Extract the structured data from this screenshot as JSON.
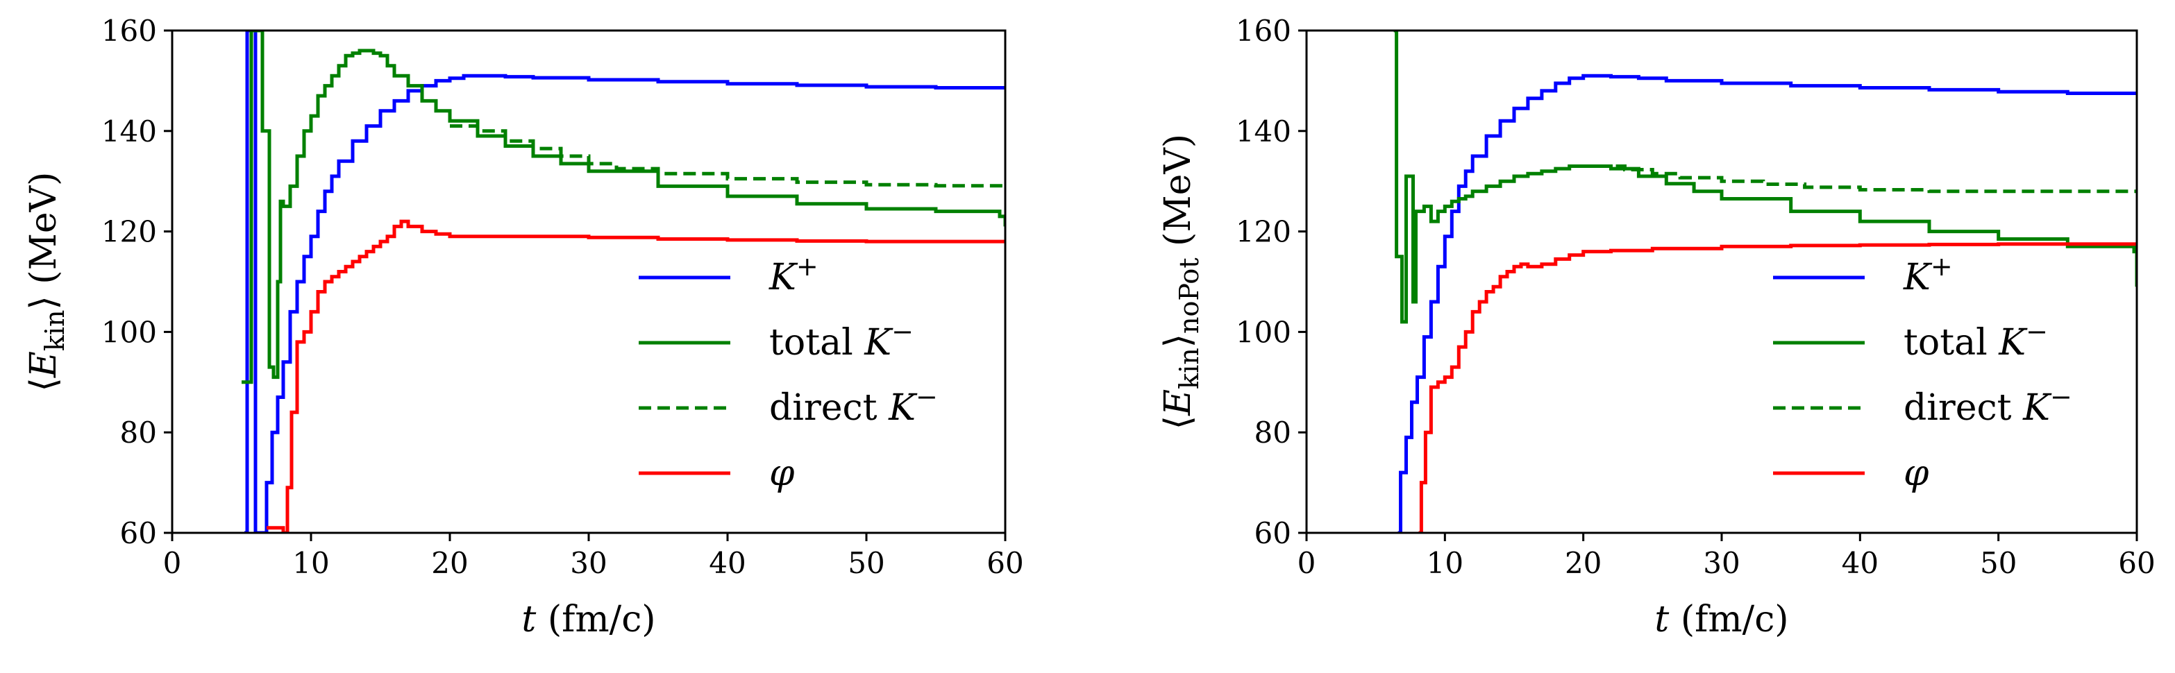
{
  "chart_data": [
    {
      "type": "line",
      "id": "left",
      "xlabel": "t (fm/c)",
      "ylabel": "⟨E_kin⟩ (MeV)",
      "ylabel_main": "⟨E",
      "ylabel_sub": "kin",
      "ylabel_tail": "⟩ (MeV)",
      "xlabel_var": "t",
      "xlabel_unit": " (fm/c)",
      "xlim": [
        0,
        60
      ],
      "ylim": [
        60,
        160
      ],
      "xticks": [
        0,
        10,
        20,
        30,
        40,
        50,
        60
      ],
      "yticks": [
        60,
        80,
        100,
        120,
        140,
        160
      ],
      "xtick_labels": [
        "0",
        "10",
        "20",
        "30",
        "40",
        "50",
        "60"
      ],
      "ytick_labels": [
        "60",
        "80",
        "100",
        "120",
        "140",
        "160"
      ],
      "legend_position": "lower-right",
      "series": [
        {
          "name": "K+",
          "label_base": "K",
          "label_sup": "+",
          "color": "#0000ff",
          "dash": "solid",
          "x": [
            5.2,
            5.4,
            5.8,
            6.0,
            6.4,
            6.8,
            7.2,
            7.6,
            8.0,
            8.5,
            9.0,
            9.5,
            10.0,
            10.5,
            11.0,
            11.5,
            12.0,
            13.0,
            14.0,
            15.0,
            16.0,
            17.0,
            18.0,
            19.0,
            20.0,
            21.0,
            22.0,
            24.0,
            26.0,
            30.0,
            35.0,
            40.0,
            45.0,
            50.0,
            55.0,
            60.0
          ],
          "y": [
            60,
            160,
            160,
            60,
            60,
            70,
            80,
            87,
            94,
            104,
            110,
            115,
            119,
            124,
            128,
            131,
            134,
            138,
            141,
            144,
            146,
            148,
            149,
            150,
            150.5,
            151,
            151,
            150.8,
            150.6,
            150.2,
            149.8,
            149.4,
            149.1,
            148.8,
            148.6,
            148.4
          ]
        },
        {
          "name": "total K−",
          "label_base": "total K",
          "label_sup": "−",
          "color": "#008000",
          "dash": "solid",
          "x": [
            5.0,
            5.6,
            5.7,
            6.0,
            6.4,
            6.5,
            7.0,
            7.3,
            7.6,
            7.8,
            8.0,
            8.5,
            9.0,
            9.5,
            10.0,
            10.5,
            11.0,
            11.5,
            12.0,
            12.5,
            13.0,
            13.5,
            14.0,
            14.5,
            15.0,
            15.5,
            16.0,
            17.0,
            18.0,
            19.0,
            20.0,
            22.0,
            24.0,
            26.0,
            28.0,
            30.0,
            35.0,
            40.0,
            45.0,
            50.0,
            55.0,
            59.6,
            60.0
          ],
          "y": [
            90,
            90,
            160,
            160,
            160,
            140,
            93,
            91,
            110,
            126,
            125,
            129,
            135,
            140,
            143,
            147,
            149,
            151,
            153,
            155,
            155.5,
            156,
            156,
            155.5,
            155,
            153,
            151,
            149,
            146,
            144,
            142,
            139,
            137,
            135,
            133.5,
            132,
            129,
            127,
            125.5,
            124.5,
            124,
            123,
            121
          ]
        },
        {
          "name": "direct K−",
          "label_base": "direct K",
          "label_sup": "−",
          "color": "#008000",
          "dash": "dashed",
          "x": [
            20.0,
            22.0,
            24.0,
            26.0,
            28.0,
            30.0,
            32.0,
            35.0,
            40.0,
            45.0,
            50.0,
            55.0,
            60.0
          ],
          "y": [
            141,
            140,
            138,
            136.5,
            135,
            133.5,
            132.5,
            131.5,
            130.5,
            129.8,
            129.3,
            129.1,
            129
          ]
        },
        {
          "name": "φ",
          "label_base": "φ",
          "label_sup": "",
          "color": "#ff0000",
          "dash": "solid",
          "x": [
            6.8,
            7.2,
            8.0,
            8.3,
            8.6,
            9.0,
            9.5,
            10.0,
            10.5,
            11.0,
            11.5,
            12.0,
            12.5,
            13.0,
            13.5,
            14.0,
            14.5,
            15.0,
            15.5,
            16.0,
            16.5,
            17.0,
            18.0,
            19.0,
            20.0,
            22.0,
            25.0,
            30.0,
            35.0,
            40.0,
            45.0,
            50.0,
            55.0,
            60.0
          ],
          "y": [
            61,
            61,
            60,
            69,
            84,
            98,
            100,
            104,
            108,
            110,
            111,
            112,
            113,
            114,
            115,
            116,
            117,
            118,
            119,
            121,
            122,
            121,
            120,
            119.5,
            119,
            119,
            119,
            118.8,
            118.5,
            118.3,
            118.1,
            118,
            118,
            118
          ]
        }
      ]
    },
    {
      "type": "line",
      "id": "right",
      "xlabel": "t (fm/c)",
      "ylabel": "⟨E_kin⟩_noPot (MeV)",
      "ylabel_main": "⟨E",
      "ylabel_sub": "kin",
      "ylabel_tail": "⟩",
      "ylabel_sub2": "noPot",
      "ylabel_tail2": " (MeV)",
      "xlabel_var": "t",
      "xlabel_unit": " (fm/c)",
      "xlim": [
        0,
        60
      ],
      "ylim": [
        60,
        160
      ],
      "xticks": [
        0,
        10,
        20,
        30,
        40,
        50,
        60
      ],
      "yticks": [
        60,
        80,
        100,
        120,
        140,
        160
      ],
      "xtick_labels": [
        "0",
        "10",
        "20",
        "30",
        "40",
        "50",
        "60"
      ],
      "ytick_labels": [
        "60",
        "80",
        "100",
        "120",
        "140",
        "160"
      ],
      "legend_position": "lower-right",
      "series": [
        {
          "name": "K+",
          "label_base": "K",
          "label_sup": "+",
          "color": "#0000ff",
          "dash": "solid",
          "x": [
            6.6,
            6.8,
            7.2,
            7.6,
            8.0,
            8.5,
            9.0,
            9.5,
            10.0,
            10.5,
            11.0,
            11.5,
            12.0,
            13.0,
            14.0,
            15.0,
            16.0,
            17.0,
            18.0,
            19.0,
            20.0,
            21.0,
            22.0,
            24.0,
            26.0,
            30.0,
            35.0,
            40.0,
            45.0,
            50.0,
            55.0,
            60.0
          ],
          "y": [
            60,
            72,
            79,
            86,
            91,
            99,
            106,
            113,
            119,
            124,
            129,
            132,
            135,
            139,
            142,
            144.5,
            146.5,
            148,
            149.5,
            150.5,
            151,
            151,
            150.8,
            150.5,
            150,
            149.5,
            149,
            148.6,
            148.2,
            147.8,
            147.5,
            147.2
          ]
        },
        {
          "name": "total K−",
          "label_base": "total K",
          "label_sup": "−",
          "color": "#008000",
          "dash": "solid",
          "x": [
            6.3,
            6.5,
            6.9,
            7.2,
            7.7,
            7.9,
            8.2,
            8.5,
            9.0,
            9.5,
            10.0,
            10.5,
            11.0,
            11.5,
            12.0,
            13.0,
            14.0,
            15.0,
            16.0,
            17.0,
            18.0,
            19.0,
            20.0,
            21.0,
            22.0,
            24.0,
            26.0,
            28.0,
            30.0,
            35.0,
            40.0,
            45.0,
            50.0,
            55.0,
            59.8,
            60.0
          ],
          "y": [
            160,
            115,
            102,
            131,
            106,
            124,
            124,
            125,
            122,
            124,
            125,
            126,
            126.5,
            127,
            128,
            129,
            130,
            131,
            131.5,
            132,
            132.5,
            133,
            133,
            133,
            132.5,
            131,
            129.5,
            128,
            126.5,
            124,
            122,
            120,
            118.5,
            117,
            116,
            109
          ]
        },
        {
          "name": "direct K−",
          "label_base": "direct K",
          "label_sup": "−",
          "color": "#008000",
          "dash": "dashed",
          "x": [
            21.0,
            23.0,
            25.0,
            27.0,
            30.0,
            33.0,
            36.0,
            40.0,
            45.0,
            50.0,
            55.0,
            60.0
          ],
          "y": [
            133,
            132.3,
            131.5,
            130.7,
            130,
            129.4,
            128.8,
            128.3,
            128,
            128,
            128,
            128
          ]
        },
        {
          "name": "φ",
          "label_base": "φ",
          "label_sup": "",
          "color": "#ff0000",
          "dash": "solid",
          "x": [
            8.1,
            8.3,
            8.6,
            9.0,
            9.5,
            10.0,
            10.5,
            11.0,
            11.5,
            12.0,
            12.5,
            13.0,
            13.5,
            14.0,
            14.5,
            15.0,
            15.5,
            16.0,
            17.0,
            18.0,
            19.0,
            20.0,
            22.0,
            25.0,
            30.0,
            35.0,
            40.0,
            45.0,
            50.0,
            55.0,
            60.0
          ],
          "y": [
            60,
            70,
            80,
            89,
            90,
            91,
            93,
            97,
            100,
            104,
            106,
            108,
            109,
            111,
            112,
            113,
            113.5,
            113,
            113.5,
            114.5,
            115.3,
            116,
            116.2,
            116.6,
            117,
            117.2,
            117.3,
            117.4,
            117.5,
            117.5,
            117.6
          ]
        }
      ]
    }
  ]
}
